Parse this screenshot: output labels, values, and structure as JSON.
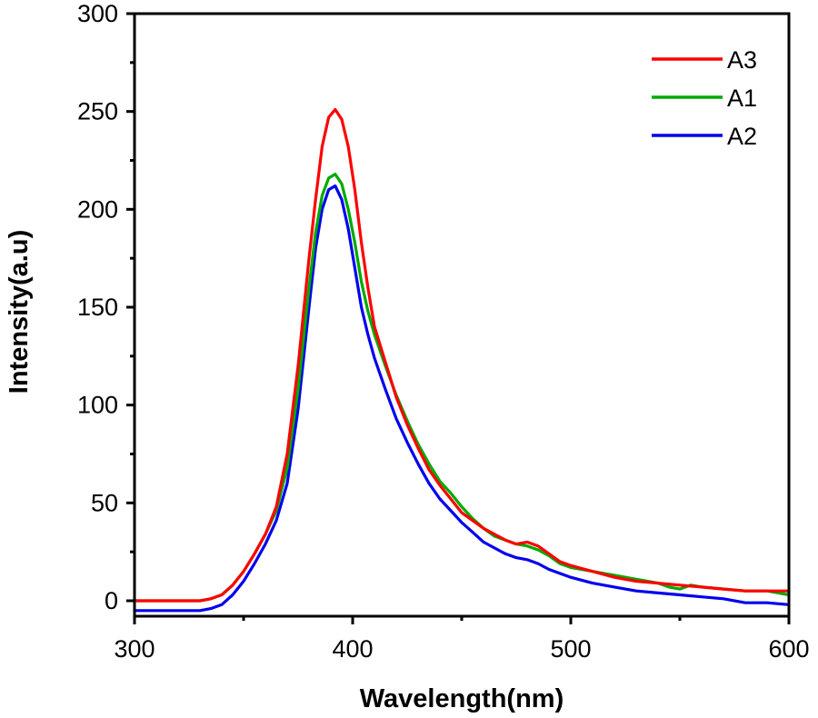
{
  "chart_data": {
    "type": "line",
    "title": "",
    "xlabel": "Wavelength(nm)",
    "ylabel": "Intensity(a.u)",
    "xlim": [
      300,
      600
    ],
    "ylim": [
      0,
      300
    ],
    "x_ticks": [
      300,
      400,
      500,
      600
    ],
    "y_ticks": [
      0,
      50,
      100,
      150,
      200,
      250,
      300
    ],
    "grid": false,
    "legend_position": "top-right",
    "series": [
      {
        "name": "A3",
        "color": "#ff0000",
        "x": [
          300,
          320,
          330,
          335,
          340,
          345,
          350,
          355,
          360,
          365,
          370,
          375,
          380,
          383,
          386,
          389,
          392,
          395,
          398,
          401,
          404,
          407,
          410,
          415,
          420,
          425,
          430,
          435,
          440,
          445,
          450,
          455,
          460,
          465,
          470,
          475,
          480,
          485,
          490,
          495,
          500,
          510,
          520,
          530,
          540,
          550,
          560,
          570,
          580,
          590,
          600
        ],
        "y": [
          0,
          0,
          0,
          1,
          3,
          8,
          15,
          24,
          34,
          48,
          75,
          120,
          175,
          205,
          232,
          247,
          251,
          246,
          232,
          210,
          183,
          160,
          140,
          122,
          104,
          90,
          78,
          67,
          59,
          52,
          45,
          41,
          37,
          34,
          31,
          29,
          30,
          28,
          24,
          20,
          18,
          15,
          12,
          10,
          9,
          8,
          7,
          6,
          5,
          5,
          5
        ]
      },
      {
        "name": "A1",
        "color": "#00aa00",
        "x": [
          300,
          320,
          330,
          335,
          340,
          345,
          350,
          355,
          360,
          365,
          370,
          375,
          380,
          383,
          386,
          389,
          392,
          395,
          398,
          401,
          404,
          407,
          410,
          415,
          420,
          425,
          430,
          435,
          440,
          445,
          450,
          455,
          460,
          465,
          470,
          475,
          480,
          485,
          490,
          495,
          500,
          510,
          520,
          530,
          540,
          545,
          550,
          555,
          560,
          570,
          580,
          590,
          600
        ],
        "y": [
          0,
          0,
          0,
          1,
          3,
          8,
          15,
          24,
          34,
          46,
          68,
          108,
          160,
          188,
          207,
          216,
          218,
          213,
          200,
          183,
          163,
          148,
          136,
          120,
          105,
          92,
          80,
          70,
          61,
          55,
          48,
          42,
          37,
          33,
          31,
          29,
          28,
          26,
          23,
          19,
          17,
          15,
          13,
          11,
          9,
          7,
          6,
          8,
          7,
          6,
          5,
          5,
          3
        ]
      },
      {
        "name": "A2",
        "color": "#0000ee",
        "x": [
          300,
          320,
          330,
          335,
          340,
          345,
          350,
          355,
          360,
          365,
          370,
          375,
          380,
          383,
          386,
          389,
          392,
          395,
          398,
          401,
          404,
          407,
          410,
          415,
          420,
          425,
          430,
          435,
          440,
          445,
          450,
          455,
          460,
          465,
          470,
          475,
          480,
          485,
          490,
          495,
          500,
          510,
          520,
          530,
          540,
          550,
          560,
          570,
          580,
          590,
          600
        ],
        "y": [
          -5,
          -5,
          -5,
          -4,
          -2,
          3,
          10,
          19,
          29,
          41,
          60,
          98,
          150,
          180,
          200,
          210,
          212,
          205,
          190,
          170,
          150,
          136,
          124,
          108,
          93,
          81,
          70,
          60,
          52,
          46,
          40,
          35,
          30,
          27,
          24,
          22,
          21,
          19,
          16,
          14,
          12,
          9,
          7,
          5,
          4,
          3,
          2,
          1,
          -1,
          -1,
          -2
        ]
      }
    ]
  }
}
